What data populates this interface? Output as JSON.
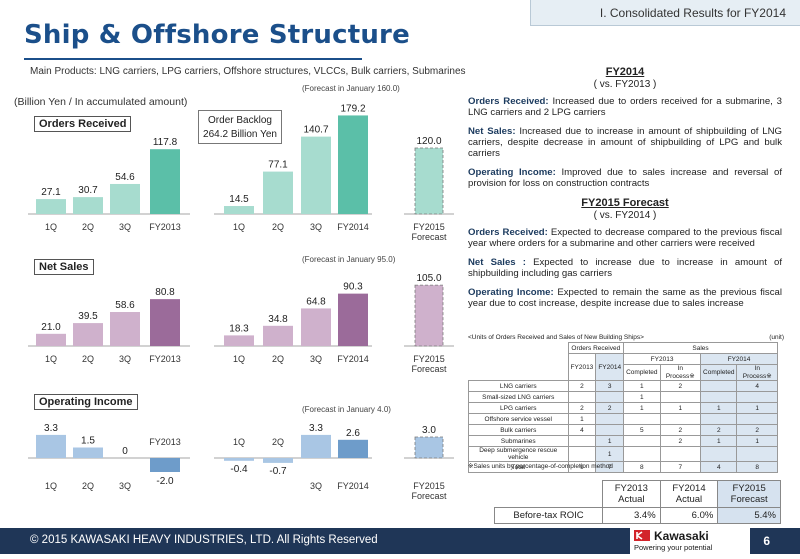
{
  "section_tab": "I. Consolidated Results for FY2014",
  "title": "Ship & Offshore Structure",
  "products": "Main Products: LNG carriers, LPG carriers, Offshore structures, VLCCs, Bulk carriers, Submarines",
  "unit": "(Billion Yen / In accumulated amount)",
  "backlog": {
    "line1": "Order Backlog",
    "line2": "264.2 Billion Yen"
  },
  "colors": {
    "light": "#a9c6e4",
    "accent_orders": "#5bbfa8",
    "light_orders": "#a7dccf",
    "accent_sales": "#9b6b9a",
    "light_sales": "#cfb1cc",
    "accent_oi": "#6e9cca",
    "light_oi": "#a9c6e4",
    "forecast_border": "#7a7a7a"
  },
  "chart_data": [
    {
      "type": "bar",
      "title": "Orders Received",
      "forecast_note": "(Forecast in January 160.0)",
      "categories": [
        "1Q",
        "2Q",
        "3Q",
        "FY2013",
        "1Q",
        "2Q",
        "3Q",
        "FY2014",
        "FY2015 Forecast"
      ],
      "values": [
        27.1,
        30.7,
        54.6,
        117.8,
        14.5,
        77.1,
        140.7,
        179.2,
        120.0
      ],
      "labels": [
        "27.1",
        "30.7",
        "54.6",
        "117.8",
        "14.5",
        "77.1",
        "140.7",
        "179.2",
        "120.0"
      ]
    },
    {
      "type": "bar",
      "title": "Net Sales",
      "forecast_note": "(Forecast in January 95.0)",
      "categories": [
        "1Q",
        "2Q",
        "3Q",
        "FY2013",
        "1Q",
        "2Q",
        "3Q",
        "FY2014",
        "FY2015 Forecast"
      ],
      "values": [
        21.0,
        39.5,
        58.6,
        80.8,
        18.3,
        34.8,
        64.8,
        90.3,
        105.0
      ],
      "labels": [
        "21.0",
        "39.5",
        "58.6",
        "80.8",
        "18.3",
        "34.8",
        "64.8",
        "90.3",
        "105.0"
      ]
    },
    {
      "type": "bar",
      "title": "Operating Income",
      "forecast_note": "(Forecast in January 4.0)",
      "categories": [
        "1Q",
        "2Q",
        "3Q",
        "FY2013",
        "1Q",
        "2Q",
        "3Q",
        "FY2014",
        "FY2015 Forecast"
      ],
      "values": [
        3.3,
        1.5,
        0,
        -2.0,
        -0.4,
        -0.7,
        3.3,
        2.6,
        3.0
      ],
      "labels": [
        "3.3",
        "1.5",
        "0",
        "-2.0",
        "-0.4",
        "-0.7",
        "3.3",
        "2.6",
        "3.0"
      ]
    }
  ],
  "fy2014": {
    "heading": "FY2014",
    "sub": "( vs.  FY2013 )",
    "orders_label": "Orders Received:",
    "orders_text": " Increased due to orders received for a submarine, 3 LNG carriers and 2 LPG carriers",
    "sales_label": "Net Sales:",
    "sales_text": " Increased due to increase in amount of shipbuilding of LNG carriers, despite decrease in amount of shipbuilding of  LPG and bulk carriers",
    "oi_label": "Operating Income:",
    "oi_text": " Improved due to sales increase and reversal of provision for loss on construction contracts"
  },
  "fy2015": {
    "heading": "FY2015 Forecast",
    "sub": "( vs.  FY2014 )",
    "orders_label": "Orders Received:",
    "orders_text": " Expected to decrease compared to the previous fiscal year  where orders for a submarine and other carriers were received",
    "sales_label": "Net Sales :",
    "sales_text": " Expected to increase due to increase in amount of shipbuilding including gas carriers",
    "oi_label": "Operating Income:",
    "oi_text": " Expected to remain the same as the previous fiscal year due to cost increase, despite increase due to sales increase"
  },
  "units_table": {
    "caption": "<Units of Orders Received and Sales of New Building Ships>",
    "unit": "(unit)",
    "h_orders": "Orders Received",
    "h_sales": "Sales",
    "h_fy2013": "FY2013",
    "h_fy2014": "FY2014",
    "h_completed": "Completed",
    "h_inprocess": "In Process",
    "rows": [
      {
        "name": "LNG carriers",
        "c": [
          "2",
          "3",
          "1",
          "2",
          "",
          "4"
        ]
      },
      {
        "name": "Small-sized LNG carriers",
        "c": [
          "",
          "",
          "1",
          "",
          "",
          ""
        ]
      },
      {
        "name": "LPG carriers",
        "c": [
          "2",
          "2",
          "1",
          "1",
          "1",
          "1"
        ]
      },
      {
        "name": "Offshore service vessel",
        "c": [
          "1",
          "",
          "",
          "",
          "",
          ""
        ]
      },
      {
        "name": "Bulk carriers",
        "c": [
          "4",
          "",
          "5",
          "2",
          "2",
          "2"
        ]
      },
      {
        "name": "Submarines",
        "c": [
          "",
          "1",
          "",
          "2",
          "1",
          "1"
        ]
      },
      {
        "name": "Deep submergence rescue vehicle",
        "c": [
          "",
          "1",
          "",
          "",
          "",
          ""
        ]
      },
      {
        "name": "Total",
        "c": [
          "9",
          "7",
          "8",
          "7",
          "4",
          "8"
        ]
      }
    ],
    "note": "※Sales units by percentage-of-completion method"
  },
  "roic": {
    "h1a": "FY2013",
    "h1b": "Actual",
    "h2a": "FY2014",
    "h2b": "Actual",
    "h3a": "FY2015",
    "h3b": "Forecast",
    "row_label": "Before-tax ROIC",
    "v1": "3.4%",
    "v2": "6.0%",
    "v3": "5.4%"
  },
  "footer": {
    "copyright": "© 2015 KAWASAKI HEAVY INDUSTRIES, LTD. All Rights Reserved",
    "page": "6"
  },
  "logo": {
    "name": "Kawasaki",
    "tagline": "Powering your potential"
  }
}
